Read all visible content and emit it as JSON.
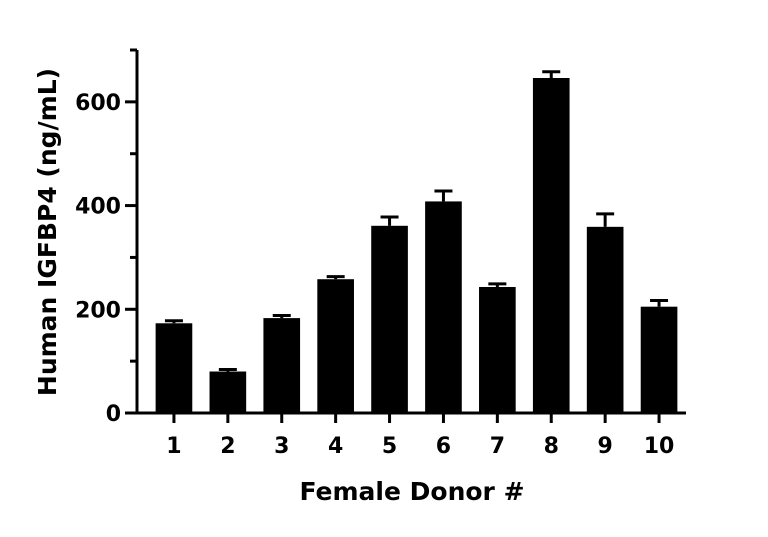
{
  "chart_data": {
    "type": "bar",
    "title": "",
    "xlabel": "Female Donor #",
    "ylabel": "Human IGFBP4 (ng/mL)",
    "categories": [
      "1",
      "2",
      "3",
      "4",
      "5",
      "6",
      "7",
      "8",
      "9",
      "10"
    ],
    "series": [
      {
        "values": [
          173,
          80,
          183,
          258,
          361,
          408,
          243,
          646,
          359,
          205
        ],
        "error": [
          5,
          4,
          5,
          5,
          17,
          20,
          6,
          12,
          25,
          12
        ]
      }
    ],
    "ylim": [
      0,
      700
    ],
    "yticks": [
      0,
      200,
      400,
      600
    ],
    "yminor_ticks": [
      100,
      300,
      500,
      700
    ],
    "ytick_labels": [
      "0",
      "200",
      "400",
      "600"
    ],
    "grid": false,
    "legend": "none",
    "bar_color": "#000000"
  }
}
